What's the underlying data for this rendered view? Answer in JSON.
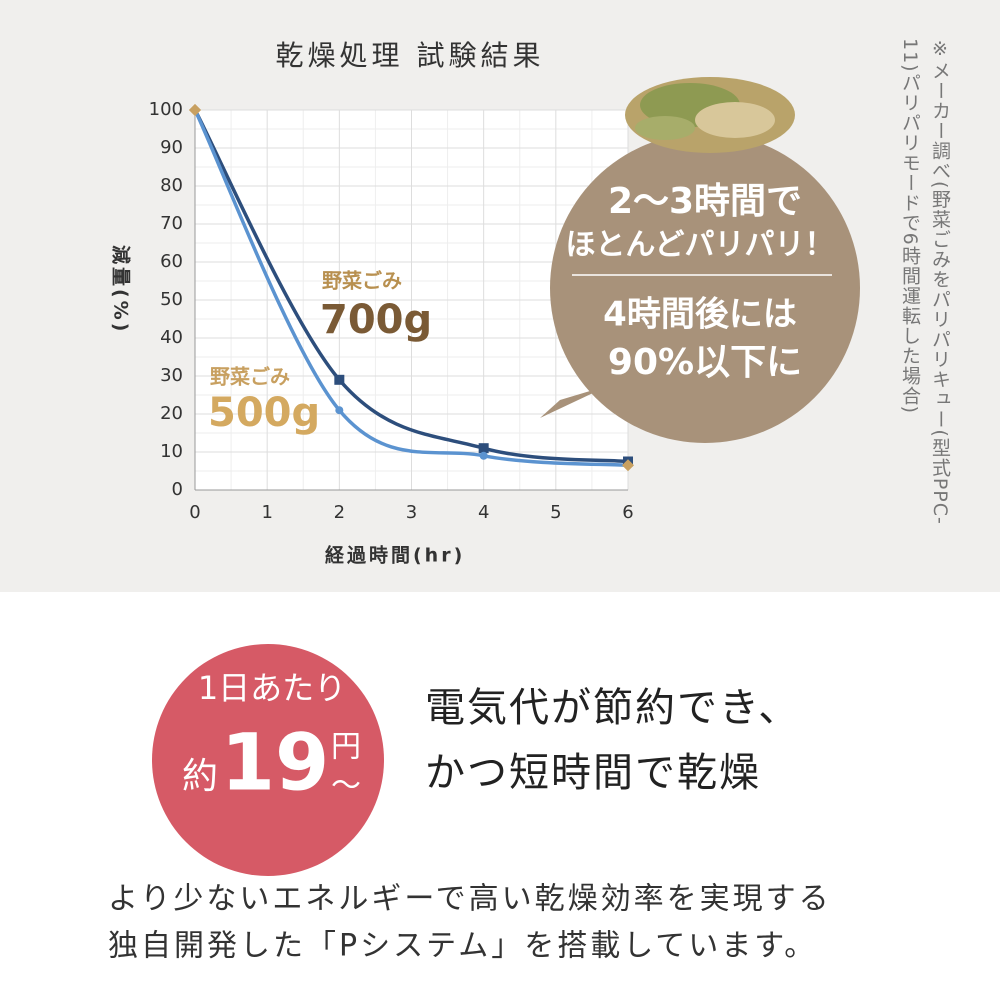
{
  "chart_data": {
    "type": "line",
    "title": "乾燥処理 試験結果",
    "x": [
      0,
      2,
      4,
      6
    ],
    "series": [
      {
        "name": "700g",
        "color": "#2d4e7c",
        "values": [
          100,
          29,
          11,
          7.5
        ]
      },
      {
        "name": "500g",
        "color": "#5b93d0",
        "values": [
          100,
          21,
          9,
          6.5
        ]
      }
    ],
    "series_caption": "野菜ごみ",
    "xlim": [
      0,
      6
    ],
    "xticks": [
      0,
      1,
      2,
      3,
      4,
      5,
      6
    ],
    "ylim": [
      0,
      100
    ],
    "yticks": [
      0,
      10,
      20,
      30,
      40,
      50,
      60,
      70,
      80,
      90,
      100
    ],
    "xlabel": "経過時間(hr)",
    "ylabel": "減量(%)",
    "grid": true
  },
  "callout": {
    "lines": [
      "2〜3時間で",
      "ほとんどパリパリ！",
      "4時間後には",
      "90%以下に"
    ]
  },
  "note": "※メーカー調べ(野菜ごみをパリパリキュー(型式PPC-11)パリパリモードで6時間運転した場合)",
  "badge": {
    "top": "1日あたり",
    "prefix": "約",
    "amount": "19",
    "unit": "円",
    "suffix": "〜"
  },
  "headline": [
    "電気代が節約でき、",
    "かつ短時間で乾燥"
  ],
  "body": [
    "より少ないエネルギーで高い乾燥効率を実現する",
    "独自開発した「Pシステム」を搭載しています。"
  ]
}
